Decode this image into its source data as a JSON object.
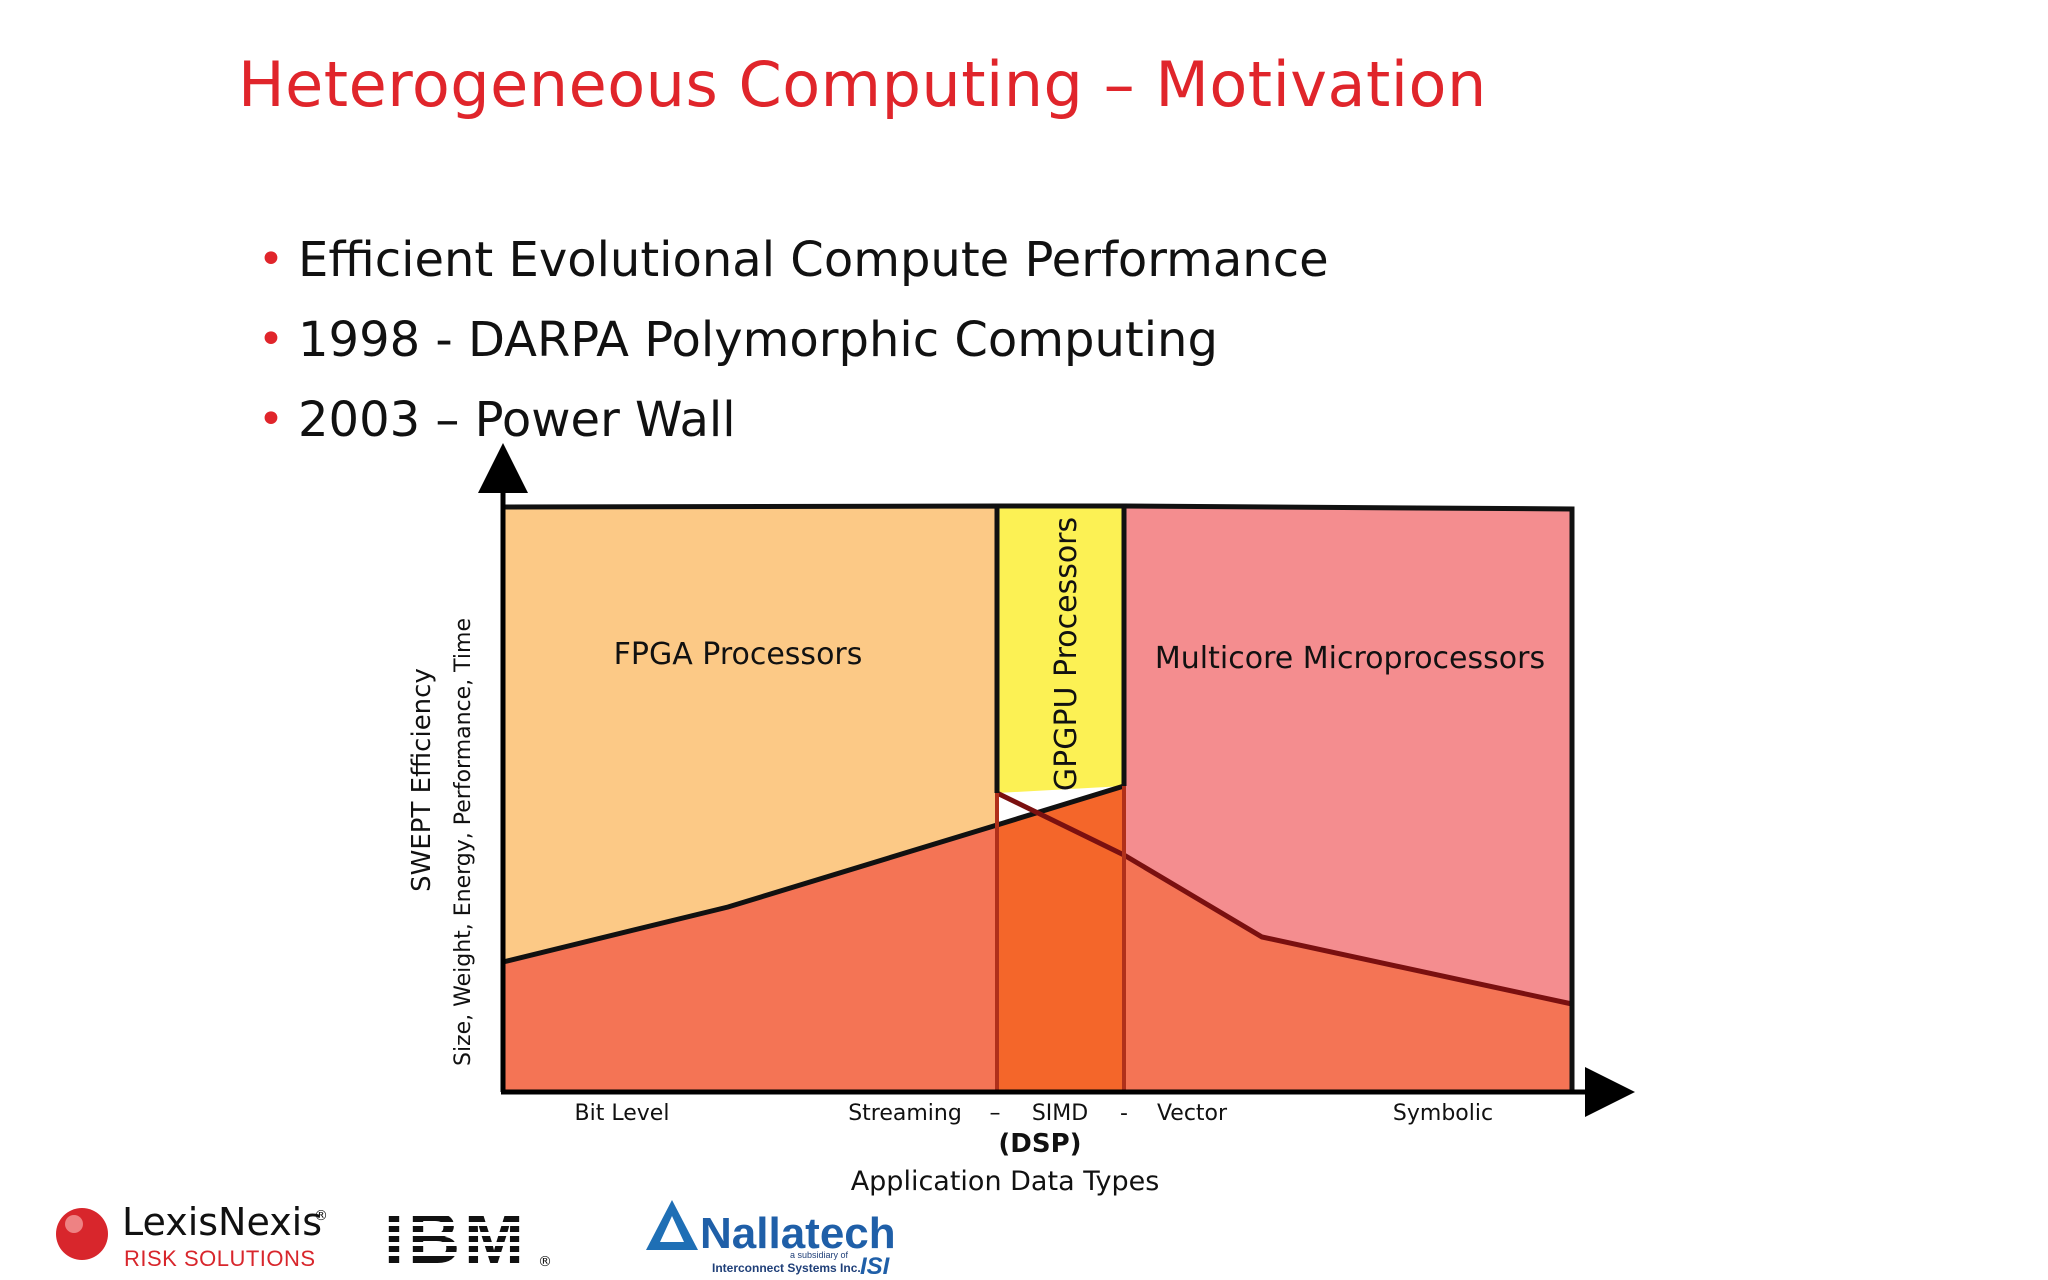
{
  "slide": {
    "title": "Heterogeneous Computing – Motivation",
    "bullets": [
      "Efficient Evolutional Compute Performance",
      "1998 - DARPA Polymorphic Computing",
      "2003 – Power Wall"
    ]
  },
  "diagram": {
    "regions": {
      "fpga": {
        "label": "FPGA Processors",
        "color": "#fcc986"
      },
      "gpgpu": {
        "label": "GPGPU Processors",
        "color": "#fcf154"
      },
      "multicore": {
        "label": "Multicore Microprocessors",
        "color": "#f48d8f"
      },
      "base_fill": "#f47455",
      "overlap_fill": "#f4662a"
    },
    "y_axis": {
      "title": "SWEPT Efficiency",
      "subtitle": "Size, Weight, Energy, Performance, Time"
    },
    "x_axis": {
      "ticks": [
        "Bit Level",
        "Streaming",
        "–",
        "SIMD",
        "-",
        "Vector",
        "Symbolic"
      ],
      "dsp_label": "(DSP)",
      "title": "Application Data Types"
    }
  },
  "logos": {
    "lexisnexis": {
      "name": "LexisNexis",
      "tagline": "RISK SOLUTIONS",
      "reg": "®"
    },
    "ibm": {
      "name": "IBM",
      "reg": "®"
    },
    "nallatech": {
      "name": "Nallatech",
      "tagline_small": "a subsidiary of",
      "tagline": "Interconnect Systems Inc.",
      "badge": "ISI"
    }
  }
}
